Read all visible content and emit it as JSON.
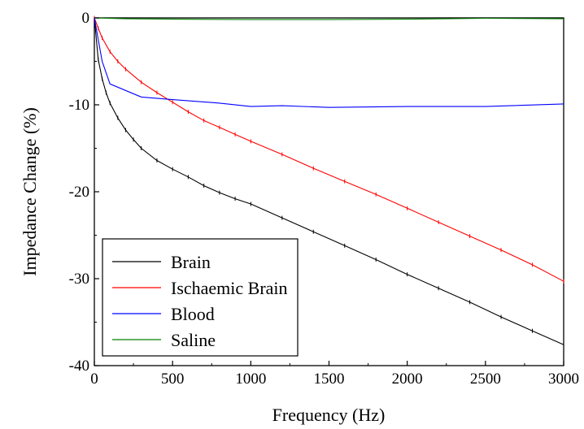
{
  "chart_data": {
    "type": "line",
    "title": "",
    "xlabel": "Frequency (Hz)",
    "ylabel": "Impedance Change (%)",
    "xlim": [
      0,
      3000
    ],
    "ylim": [
      -40,
      0
    ],
    "xticks": [
      0,
      500,
      1000,
      1500,
      2000,
      2500,
      3000
    ],
    "yticks": [
      0,
      -10,
      -20,
      -30,
      -40
    ],
    "xtick_labels": [
      "0",
      "500",
      "1000",
      "1500",
      "2000",
      "2500",
      "3000"
    ],
    "ytick_labels": [
      "0",
      "-10",
      "-20",
      "-30",
      "-40"
    ],
    "grid": false,
    "legend_position": "bottom-left",
    "series": [
      {
        "name": "Brain",
        "color": "#000000",
        "x": [
          0,
          25,
          50,
          75,
          100,
          150,
          200,
          250,
          300,
          400,
          500,
          600,
          700,
          800,
          900,
          1000,
          1200,
          1400,
          1600,
          1800,
          2000,
          2200,
          2400,
          2600,
          2800,
          3000
        ],
        "y": [
          0,
          -4.8,
          -7.0,
          -8.6,
          -9.8,
          -11.5,
          -12.9,
          -14.0,
          -15.0,
          -16.4,
          -17.4,
          -18.3,
          -19.3,
          -20.1,
          -20.8,
          -21.4,
          -23.0,
          -24.6,
          -26.2,
          -27.8,
          -29.5,
          -31.1,
          -32.7,
          -34.4,
          -36.0,
          -37.6
        ]
      },
      {
        "name": "Ischaemic Brain",
        "color": "#ff0000",
        "x": [
          0,
          25,
          50,
          100,
          150,
          200,
          300,
          400,
          500,
          600,
          700,
          800,
          900,
          1000,
          1200,
          1400,
          1600,
          1800,
          2000,
          2200,
          2400,
          2600,
          2800,
          3000
        ],
        "y": [
          0,
          -1.2,
          -2.3,
          -3.9,
          -5.0,
          -5.9,
          -7.4,
          -8.6,
          -9.7,
          -10.8,
          -11.8,
          -12.6,
          -13.4,
          -14.2,
          -15.7,
          -17.3,
          -18.8,
          -20.3,
          -21.9,
          -23.5,
          -25.1,
          -26.7,
          -28.4,
          -30.3
        ]
      },
      {
        "name": "Blood",
        "color": "#0000ff",
        "x": [
          0,
          25,
          50,
          100,
          300,
          500,
          800,
          1000,
          1200,
          1500,
          2000,
          2500,
          3000
        ],
        "y": [
          0,
          -2.5,
          -5.0,
          -7.6,
          -9.1,
          -9.4,
          -9.8,
          -10.2,
          -10.1,
          -10.3,
          -10.2,
          -10.2,
          -9.9
        ]
      },
      {
        "name": "Saline",
        "color": "#008000",
        "x": [
          0,
          200,
          500,
          1000,
          1500,
          2000,
          2500,
          3000
        ],
        "y": [
          0,
          -0.1,
          -0.15,
          -0.2,
          -0.2,
          -0.15,
          -0.05,
          -0.1
        ]
      }
    ]
  }
}
